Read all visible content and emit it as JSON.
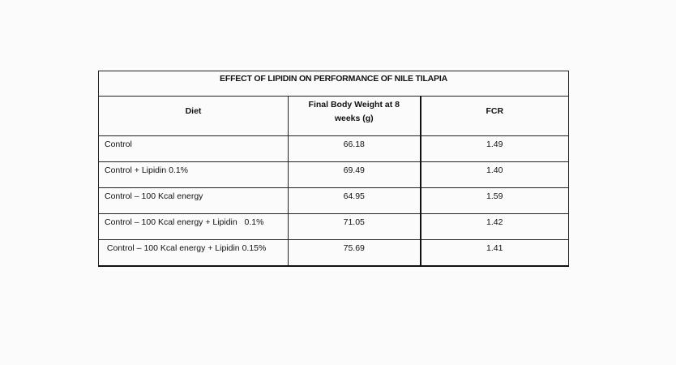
{
  "table": {
    "title": "EFFECT OF LIPIDIN ON PERFORMANCE OF NILE TILAPIA",
    "headers": {
      "diet": "Diet",
      "weight": "Final Body Weight at 8 weeks (g)",
      "fcr": "FCR"
    },
    "rows": [
      {
        "diet": "Control",
        "weight": "66.18",
        "fcr": "1.49"
      },
      {
        "diet": "Control + Lipidin 0.1%",
        "weight": "69.49",
        "fcr": "1.40"
      },
      {
        "diet": "Control – 100 Kcal energy",
        "weight": "64.95",
        "fcr": "1.59"
      },
      {
        "diet": "Control – 100 Kcal energy + Lipidin   0.1%",
        "weight": "71.05",
        "fcr": "1.42"
      },
      {
        "diet": " Control – 100 Kcal energy + Lipidin 0.15%",
        "weight": "75.69",
        "fcr": "1.41"
      }
    ]
  }
}
